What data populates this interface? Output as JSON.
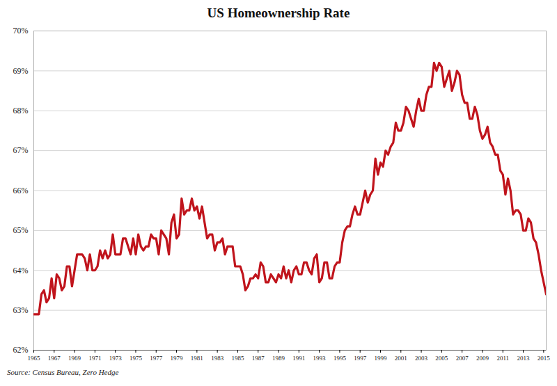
{
  "chart_data": {
    "type": "line",
    "title": "US Homeownership Rate",
    "caption": "Source: Census Bureau, Zero Hedge",
    "color": "#c0141c",
    "grid": true,
    "xlim": [
      1965,
      2015.25
    ],
    "xticks": [
      1965,
      1967,
      1969,
      1971,
      1973,
      1975,
      1977,
      1979,
      1981,
      1983,
      1985,
      1987,
      1989,
      1991,
      1993,
      1995,
      1997,
      1999,
      2001,
      2003,
      2005,
      2007,
      2009,
      2011,
      2013,
      2015
    ],
    "ylim": [
      62,
      70
    ],
    "yticks": [
      {
        "value": 62,
        "label": "62%"
      },
      {
        "value": 63,
        "label": "63%"
      },
      {
        "value": 64,
        "label": "64%"
      },
      {
        "value": 65,
        "label": "65%"
      },
      {
        "value": 66,
        "label": "66%"
      },
      {
        "value": 67,
        "label": "67%"
      },
      {
        "value": 68,
        "label": "68%"
      },
      {
        "value": 69,
        "label": "69%"
      },
      {
        "value": 70,
        "label": "70%"
      }
    ],
    "x": [
      1965,
      1965.25,
      1965.5,
      1965.75,
      1966,
      1966.25,
      1966.5,
      1966.75,
      1967,
      1967.25,
      1967.5,
      1967.75,
      1968,
      1968.25,
      1968.5,
      1968.75,
      1969,
      1969.25,
      1969.5,
      1969.75,
      1970,
      1970.25,
      1970.5,
      1970.75,
      1971,
      1971.25,
      1971.5,
      1971.75,
      1972,
      1972.25,
      1972.5,
      1972.75,
      1973,
      1973.25,
      1973.5,
      1973.75,
      1974,
      1974.25,
      1974.5,
      1974.75,
      1975,
      1975.25,
      1975.5,
      1975.75,
      1976,
      1976.25,
      1976.5,
      1976.75,
      1977,
      1977.25,
      1977.5,
      1977.75,
      1978,
      1978.25,
      1978.5,
      1978.75,
      1979,
      1979.25,
      1979.5,
      1979.75,
      1980,
      1980.25,
      1980.5,
      1980.75,
      1981,
      1981.25,
      1981.5,
      1981.75,
      1982,
      1982.25,
      1982.5,
      1982.75,
      1983,
      1983.25,
      1983.5,
      1983.75,
      1984,
      1984.25,
      1984.5,
      1984.75,
      1985,
      1985.25,
      1985.5,
      1985.75,
      1986,
      1986.25,
      1986.5,
      1986.75,
      1987,
      1987.25,
      1987.5,
      1987.75,
      1988,
      1988.25,
      1988.5,
      1988.75,
      1989,
      1989.25,
      1989.5,
      1989.75,
      1990,
      1990.25,
      1990.5,
      1990.75,
      1991,
      1991.25,
      1991.5,
      1991.75,
      1992,
      1992.25,
      1992.5,
      1992.75,
      1993,
      1993.25,
      1993.5,
      1993.75,
      1994,
      1994.25,
      1994.5,
      1994.75,
      1995,
      1995.25,
      1995.5,
      1995.75,
      1996,
      1996.25,
      1996.5,
      1996.75,
      1997,
      1997.25,
      1997.5,
      1997.75,
      1998,
      1998.25,
      1998.5,
      1998.75,
      1999,
      1999.25,
      1999.5,
      1999.75,
      2000,
      2000.25,
      2000.5,
      2000.75,
      2001,
      2001.25,
      2001.5,
      2001.75,
      2002,
      2002.25,
      2002.5,
      2002.75,
      2003,
      2003.25,
      2003.5,
      2003.75,
      2004,
      2004.25,
      2004.5,
      2004.75,
      2005,
      2005.25,
      2005.5,
      2005.75,
      2006,
      2006.25,
      2006.5,
      2006.75,
      2007,
      2007.25,
      2007.5,
      2007.75,
      2008,
      2008.25,
      2008.5,
      2008.75,
      2009,
      2009.25,
      2009.5,
      2009.75,
      2010,
      2010.25,
      2010.5,
      2010.75,
      2011,
      2011.25,
      2011.5,
      2011.75,
      2012,
      2012.25,
      2012.5,
      2012.75,
      2013,
      2013.25,
      2013.5,
      2013.75,
      2014,
      2014.25,
      2014.5,
      2014.75,
      2015,
      2015.25
    ],
    "values": [
      62.9,
      62.9,
      62.9,
      63.4,
      63.5,
      63.2,
      63.3,
      63.8,
      63.3,
      63.9,
      63.8,
      63.5,
      63.6,
      64.1,
      64.1,
      63.6,
      64.0,
      64.4,
      64.4,
      64.4,
      64.3,
      64.0,
      64.4,
      64.0,
      64.0,
      64.1,
      64.5,
      64.3,
      64.5,
      64.3,
      64.4,
      64.9,
      64.4,
      64.4,
      64.4,
      64.8,
      64.8,
      64.6,
      64.4,
      64.8,
      64.4,
      64.9,
      64.6,
      64.5,
      64.6,
      64.6,
      64.9,
      64.8,
      64.8,
      64.4,
      65.0,
      64.9,
      64.8,
      64.4,
      65.2,
      65.4,
      64.8,
      64.9,
      65.8,
      65.4,
      65.5,
      65.5,
      65.8,
      65.5,
      65.6,
      65.3,
      65.6,
      65.2,
      64.8,
      64.9,
      64.9,
      64.5,
      64.7,
      64.7,
      64.8,
      64.4,
      64.6,
      64.6,
      64.6,
      64.1,
      64.1,
      64.1,
      63.9,
      63.5,
      63.6,
      63.8,
      63.8,
      63.9,
      63.8,
      64.2,
      64.1,
      63.7,
      63.7,
      63.9,
      63.8,
      63.7,
      63.9,
      63.8,
      64.1,
      63.8,
      64.0,
      63.7,
      64.0,
      64.1,
      63.9,
      63.9,
      64.2,
      64.2,
      64.0,
      63.9,
      64.3,
      64.4,
      63.7,
      63.8,
      64.2,
      64.2,
      63.8,
      63.8,
      64.1,
      64.2,
      64.2,
      64.7,
      65.0,
      65.1,
      65.1,
      65.4,
      65.6,
      65.4,
      65.4,
      65.7,
      66.0,
      65.7,
      65.9,
      66.0,
      66.8,
      66.4,
      66.7,
      66.6,
      67.0,
      66.9,
      67.1,
      67.2,
      67.7,
      67.5,
      67.5,
      67.7,
      68.1,
      68.0,
      67.8,
      67.6,
      68.0,
      68.3,
      68.0,
      68.0,
      68.4,
      68.6,
      68.6,
      69.2,
      69.0,
      69.2,
      69.1,
      68.6,
      68.8,
      69.0,
      68.5,
      68.7,
      69.0,
      68.9,
      68.4,
      68.2,
      68.2,
      67.8,
      67.8,
      68.1,
      67.9,
      67.5,
      67.3,
      67.4,
      67.6,
      67.2,
      67.1,
      66.9,
      66.9,
      66.5,
      66.4,
      65.9,
      66.3,
      66.0,
      65.4,
      65.5,
      65.5,
      65.4,
      65.0,
      65.0,
      65.3,
      65.2,
      64.8,
      64.7,
      64.4,
      64.0,
      63.7,
      63.4
    ]
  }
}
